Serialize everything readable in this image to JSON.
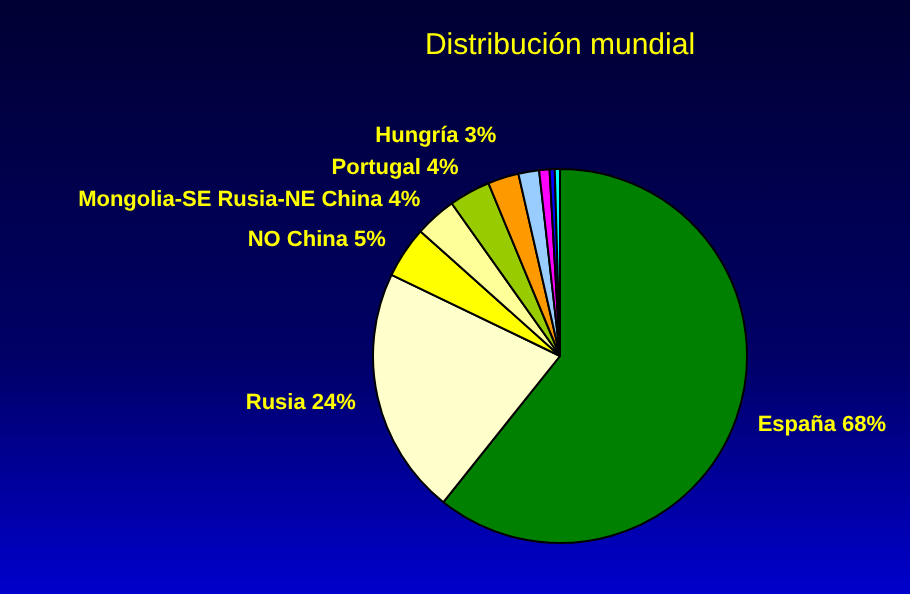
{
  "chart_data": {
    "type": "pie",
    "title": "Distribución mundial",
    "categories": [
      "España",
      "Rusia",
      "NO China",
      "Mongolia-SE Rusia-NE China",
      "Portugal",
      "Hungría",
      null,
      null,
      null,
      null
    ],
    "values": [
      68,
      24,
      5,
      4,
      4,
      3,
      2,
      1,
      0.5,
      0.5
    ],
    "value_labels": [
      "68%",
      "24%",
      "5%",
      "4%",
      "4%",
      "3%",
      null,
      null,
      null,
      null
    ],
    "colors": [
      "#008000",
      "#ffffcc",
      "#ffff00",
      "#ffff99",
      "#99cc00",
      "#ff9900",
      "#99ccff",
      "#ff00ff",
      "#0000ff",
      "#00ffff"
    ],
    "legend": false
  }
}
